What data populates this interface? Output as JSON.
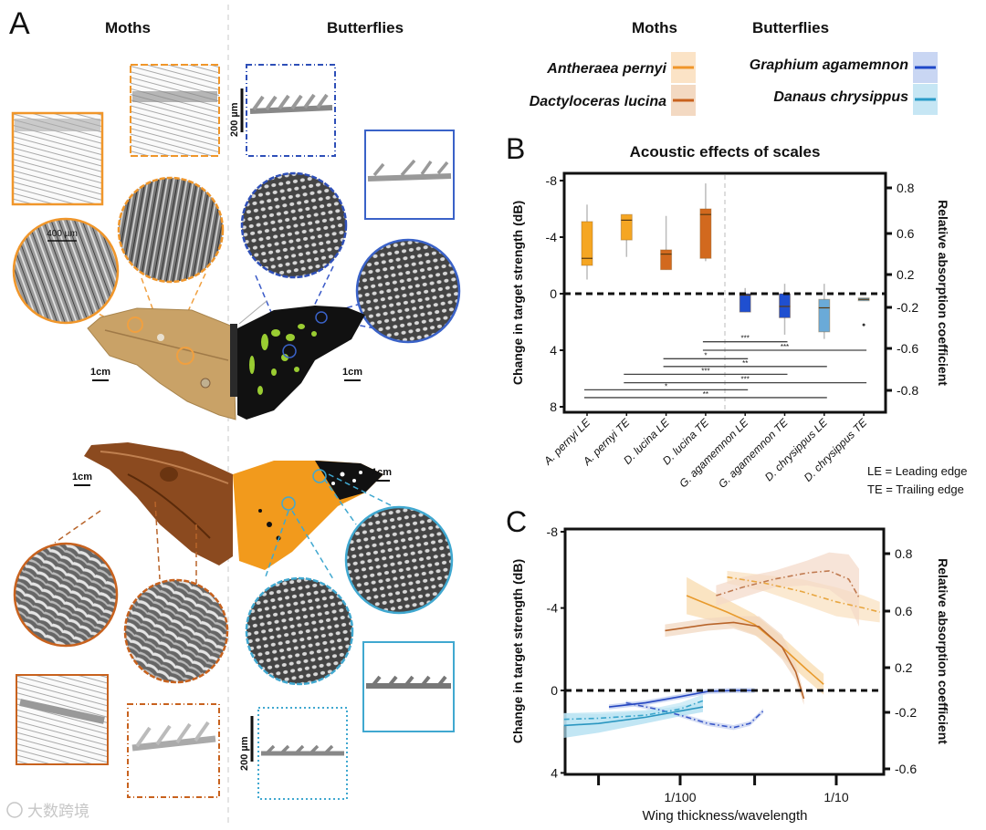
{
  "panel_a": {
    "label": "A",
    "moths_title": "Moths",
    "butterflies_title": "Butterflies",
    "scale_1cm": "1cm",
    "scale_200um": "200 µm",
    "scale_400um": "400 µm"
  },
  "legend": {
    "moths_title": "Moths",
    "butterflies_title": "Butterflies",
    "entries": [
      {
        "name": "Antheraea pernyi",
        "color": "#f0962a",
        "band": "#fbe3c6"
      },
      {
        "name": "Dactyloceras lucina",
        "color": "#c8621e",
        "band": "#f3d9c2"
      },
      {
        "name": "Graphium agamemnon",
        "color": "#1f48c8",
        "band": "#c9d6f3"
      },
      {
        "name": "Danaus chrysippus",
        "color": "#2a9cc8",
        "band": "#c6e6f4"
      }
    ]
  },
  "edge_key": {
    "le": "LE = Leading edge",
    "te": "TE = Trailing edge"
  },
  "watermark": "大数跨境",
  "chart_data": [
    {
      "panel": "B",
      "panel_label": "B",
      "type": "box",
      "title": "Acoustic effects of scales",
      "ylabel": "Change in target strength (dB)",
      "ylabel_right": "Relative absorption coefficient",
      "ylim": [
        -8,
        8
      ],
      "y_inverted": true,
      "yticks": [
        -8,
        -4,
        0,
        4,
        8
      ],
      "yticks_right": [
        "0.8",
        "0.6",
        "0.2",
        "-0.2",
        "-0.6",
        "-0.8"
      ],
      "reference_line": 0,
      "categories": [
        "A. pernyi LE",
        "A. pernyi TE",
        "D. lucina LE",
        "D. lucina TE",
        "G. agamemnon  LE",
        "G. agamemnon  TE",
        "D. chrysippus LE",
        "D. chrysippus TE"
      ],
      "boxes": [
        {
          "min": -6.3,
          "q1": -5.1,
          "median": -2.5,
          "q3": -2.0,
          "max": -1.0,
          "color": "#f5a623"
        },
        {
          "min": -5.6,
          "q1": -5.6,
          "median": -5.2,
          "q3": -3.8,
          "max": -2.6,
          "color": "#f5a623"
        },
        {
          "min": -5.5,
          "q1": -3.1,
          "median": -2.8,
          "q3": -1.7,
          "max": -1.7,
          "color": "#d2691e"
        },
        {
          "min": -7.8,
          "q1": -6.0,
          "median": -5.6,
          "q3": -2.5,
          "max": -2.3,
          "color": "#d2691e"
        },
        {
          "min": -0.4,
          "q1": 0.0,
          "median": 0.1,
          "q3": 1.3,
          "max": 1.3,
          "color": "#1f4fd0"
        },
        {
          "min": -0.7,
          "q1": 0.0,
          "median": 0.9,
          "q3": 1.7,
          "max": 2.9,
          "color": "#1f4fd0"
        },
        {
          "min": -0.7,
          "q1": 0.4,
          "median": 1.0,
          "q3": 2.7,
          "max": 3.2,
          "color": "#6aaad8"
        },
        {
          "min": 0.3,
          "q1": 0.3,
          "median": 0.4,
          "q3": 0.5,
          "max": 0.5,
          "color": "#6aaad8",
          "outliers": [
            2.2
          ]
        }
      ],
      "significance": [
        {
          "from": 3,
          "to": 5,
          "y": 3.4,
          "label": "***"
        },
        {
          "from": 3,
          "to": 7,
          "y": 4.0,
          "label": "***"
        },
        {
          "from": 2,
          "to": 4,
          "y": 4.6,
          "label": "*"
        },
        {
          "from": 2,
          "to": 6,
          "y": 5.15,
          "label": "**"
        },
        {
          "from": 1,
          "to": 5,
          "y": 5.7,
          "label": "***"
        },
        {
          "from": 1,
          "to": 7,
          "y": 6.3,
          "label": "***"
        },
        {
          "from": 0,
          "to": 4,
          "y": 6.8,
          "label": "*"
        },
        {
          "from": 0,
          "to": 6,
          "y": 7.35,
          "label": "**"
        }
      ]
    },
    {
      "panel": "C",
      "panel_label": "C",
      "type": "line",
      "xlabel": "Wing thickness/wavelength",
      "ylabel": "Change in target strength (dB)",
      "ylabel_right": "Relative absorption coefficient",
      "xscale": "log",
      "xlim": [
        0.0018,
        0.2
      ],
      "xticks": [
        0.003,
        0.01,
        0.03,
        0.1
      ],
      "xtick_labels": [
        "",
        "1/100",
        "",
        "1/10"
      ],
      "ylim": [
        -8,
        4
      ],
      "y_inverted": true,
      "yticks": [
        -8,
        -4,
        0,
        4
      ],
      "yticks_right": [
        "0.8",
        "0.6",
        "0.2",
        "-0.2",
        "-0.6"
      ],
      "reference_line": 0,
      "series": [
        {
          "name": "Antheraea pernyi",
          "edge": "LE",
          "style": "solid",
          "color": "#e89a2c",
          "band_color": "#f8d9a8",
          "x": [
            0.011,
            0.02,
            0.03,
            0.045,
            0.065,
            0.083
          ],
          "y": [
            -4.6,
            -3.8,
            -3.2,
            -2.1,
            -1.0,
            -0.3
          ],
          "band": [
            0.9,
            0.6,
            0.5,
            0.5,
            0.5,
            0.5
          ]
        },
        {
          "name": "Dactyloceras lucina",
          "edge": "LE",
          "style": "solid",
          "color": "#b8642a",
          "band_color": "#f1d5bd",
          "x": [
            0.008,
            0.015,
            0.022,
            0.032,
            0.045,
            0.055,
            0.062
          ],
          "y": [
            -2.9,
            -3.2,
            -3.3,
            -3.1,
            -2.1,
            -0.9,
            0.4
          ],
          "band": [
            0.3,
            0.3,
            0.3,
            0.5,
            0.6,
            0.4,
            0.3
          ]
        },
        {
          "name": "Antheraea pernyi",
          "edge": "TE",
          "style": "dashdot",
          "color": "#e8a640",
          "band_color": "#fae0bd",
          "x": [
            0.02,
            0.035,
            0.06,
            0.1,
            0.15,
            0.19
          ],
          "y": [
            -5.5,
            -5.2,
            -4.8,
            -4.3,
            -4.0,
            -3.8
          ],
          "band": [
            0.3,
            0.4,
            0.6,
            0.7,
            0.6,
            0.5
          ]
        },
        {
          "name": "Dactyloceras lucina",
          "edge": "TE",
          "style": "dashdot",
          "color": "#c07a50",
          "band_color": "#f3d8c8",
          "x": [
            0.017,
            0.025,
            0.04,
            0.065,
            0.09,
            0.12,
            0.14
          ],
          "y": [
            -4.6,
            -5.0,
            -5.4,
            -5.7,
            -5.8,
            -5.4,
            -4.5
          ],
          "band": [
            0.5,
            0.5,
            0.4,
            0.6,
            0.9,
            1.2,
            1.4
          ]
        },
        {
          "name": "Graphium agamemnon",
          "edge": "LE",
          "style": "solid",
          "color": "#2546c0",
          "band_color": "#b6c6ee",
          "x": [
            0.0035,
            0.006,
            0.01,
            0.015,
            0.022,
            0.03
          ],
          "y": [
            0.8,
            0.6,
            0.3,
            0.05,
            0.0,
            0.0
          ],
          "band": [
            0.12,
            0.12,
            0.12,
            0.12,
            0.12,
            0.12
          ]
        },
        {
          "name": "Graphium agamemnon",
          "edge": "TE",
          "style": "dashdot",
          "color": "#3a58c8",
          "band_color": "#c3cff0",
          "x": [
            0.0045,
            0.007,
            0.01,
            0.015,
            0.022,
            0.028,
            0.034
          ],
          "y": [
            0.6,
            0.9,
            1.2,
            1.6,
            1.8,
            1.6,
            1.0
          ],
          "band": [
            0.1,
            0.1,
            0.1,
            0.12,
            0.12,
            0.12,
            0.12
          ]
        },
        {
          "name": "Danaus chrysippus",
          "edge": "LE",
          "style": "solid",
          "color": "#2a96c0",
          "band_color": "#a8dcf0",
          "x": [
            0.0018,
            0.003,
            0.006,
            0.01,
            0.014
          ],
          "y": [
            1.7,
            1.6,
            1.3,
            1.0,
            0.8
          ],
          "band": [
            0.6,
            0.45,
            0.3,
            0.25,
            0.25
          ]
        },
        {
          "name": "Danaus chrysippus",
          "edge": "TE",
          "style": "dashdot",
          "color": "#3aa6cc",
          "band_color": "#bfe6f4",
          "x": [
            0.0018,
            0.003,
            0.006,
            0.01,
            0.014
          ],
          "y": [
            1.4,
            1.35,
            1.2,
            0.9,
            0.5
          ],
          "band": [
            0.3,
            0.3,
            0.25,
            0.3,
            0.3
          ]
        }
      ]
    }
  ]
}
